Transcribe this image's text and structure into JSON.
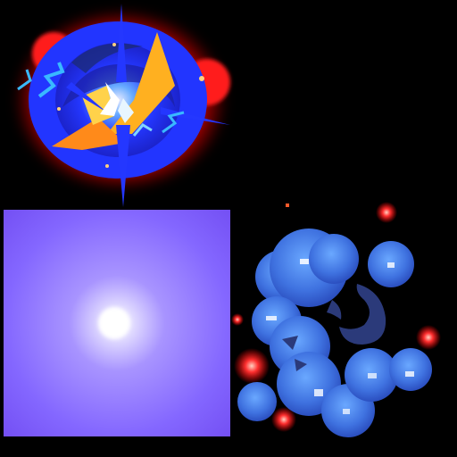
{
  "sheet": {
    "background": "#000000",
    "sprites": [
      {
        "id": "burst",
        "icon": "energy-burst-explosion-icon",
        "colors": {
          "outer": "#ff1a1a",
          "mid": "#2437ff",
          "core": "#ffb020",
          "spark": "#39b9ff",
          "highlight": "#ffffff"
        }
      },
      {
        "id": "glow-square",
        "icon": "radial-glow-tile-icon",
        "colors": {
          "edge": "#7b4dff",
          "mid": "#8f74ff",
          "center": "#ffffff"
        }
      },
      {
        "id": "bubble-cluster",
        "icon": "bubble-smoke-cluster-icon",
        "colors": {
          "bubble": "#3a78e8",
          "bubble_light": "#5ea2ff",
          "shadow": "#2b3a7a",
          "ember": "#ff2020",
          "ember_core": "#ffb0a0"
        }
      }
    ]
  }
}
